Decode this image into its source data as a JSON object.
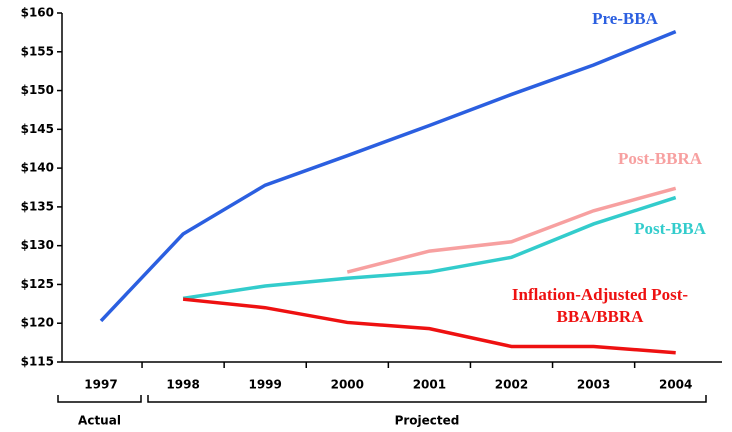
{
  "chart_data": {
    "type": "line",
    "categories": [
      "1997",
      "1998",
      "1999",
      "2000",
      "2001",
      "2002",
      "2003",
      "2004"
    ],
    "group_labels": [
      "Actual",
      "Projected"
    ],
    "series": [
      {
        "name": "Pre-BBA",
        "color": "#2b5fe0",
        "values": [
          120.3,
          131.5,
          137.8,
          141.6,
          145.5,
          149.5,
          153.3,
          157.6
        ]
      },
      {
        "name": "Post-BBRA",
        "color": "#f7a0a0",
        "values": [
          null,
          null,
          null,
          126.6,
          129.3,
          130.5,
          134.5,
          137.4
        ]
      },
      {
        "name": "Post-BBA",
        "color": "#33cccc",
        "values": [
          null,
          123.2,
          124.8,
          125.8,
          126.6,
          128.5,
          132.8,
          136.2
        ]
      },
      {
        "name": "Inflation-Adjusted Post-BBA/BBRA",
        "color": "#ee1111",
        "values": [
          null,
          123.1,
          122.0,
          120.1,
          119.3,
          117.0,
          117.0,
          116.2
        ]
      }
    ],
    "ylim": [
      115,
      160
    ],
    "yticks": [
      {
        "value": 115,
        "label": "$115"
      },
      {
        "value": 120,
        "label": "$120"
      },
      {
        "value": 125,
        "label": "$125"
      },
      {
        "value": 130,
        "label": "$130"
      },
      {
        "value": 135,
        "label": "$135"
      },
      {
        "value": 140,
        "label": "$140"
      },
      {
        "value": 145,
        "label": "$145"
      },
      {
        "value": 150,
        "label": "$150"
      },
      {
        "value": 155,
        "label": "$155"
      },
      {
        "value": 160,
        "label": "$160"
      }
    ],
    "grid": false
  }
}
